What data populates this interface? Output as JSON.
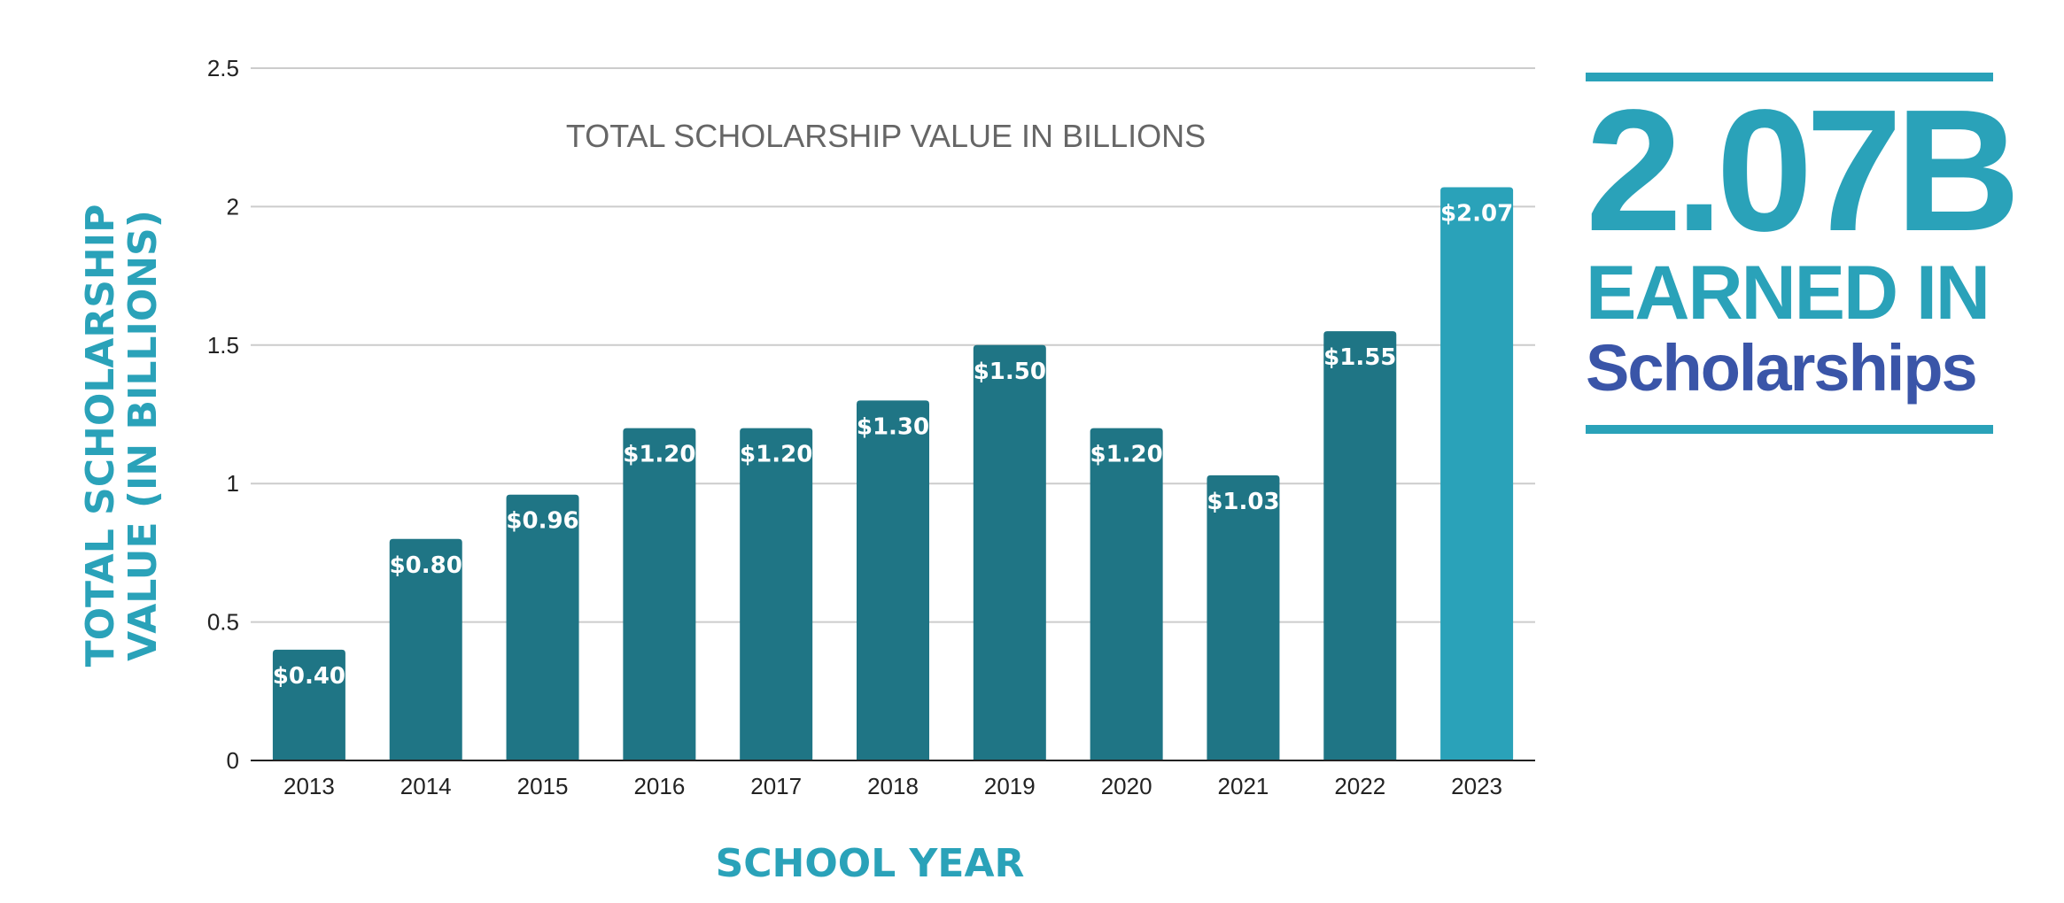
{
  "colors": {
    "bar": "#1f7585",
    "bar_highlight": "#2aa2b9",
    "axis_title": "#2aa2b9",
    "grid": "#cccccc",
    "baseline": "#222222",
    "callout_value": "#2aa2b9",
    "callout_line1": "#2aa2b9",
    "callout_line2": "#3a55a8"
  },
  "chart_data": {
    "type": "bar",
    "title": "TOTAL SCHOLARSHIP VALUE IN BILLIONS",
    "xlabel": "SCHOOL YEAR",
    "ylabel_lines": [
      "TOTAL SCHOLARSHIP",
      "VALUE (IN BILLIONS)"
    ],
    "categories": [
      "2013",
      "2014",
      "2015",
      "2016",
      "2017",
      "2018",
      "2019",
      "2020",
      "2021",
      "2022",
      "2023"
    ],
    "values": [
      0.4,
      0.8,
      0.96,
      1.2,
      1.2,
      1.3,
      1.5,
      1.2,
      1.03,
      1.55,
      2.07
    ],
    "data_labels": [
      "$0.40",
      "$0.80",
      "$0.96",
      "$1.20",
      "$1.20",
      "$1.30",
      "$1.50",
      "$1.20",
      "$1.03",
      "$1.55",
      "$2.07"
    ],
    "highlight_category": "2023",
    "ylim": [
      0,
      2.5
    ],
    "yticks": [
      0,
      0.5,
      1,
      1.5,
      2,
      2.5
    ],
    "ytick_labels": [
      "0",
      "0.5",
      "1",
      "1.5",
      "2",
      "2.5"
    ],
    "grid": true,
    "legend": "none"
  },
  "callout": {
    "value": "2.07B",
    "line1": "EARNED IN",
    "line2": "Scholarships"
  }
}
